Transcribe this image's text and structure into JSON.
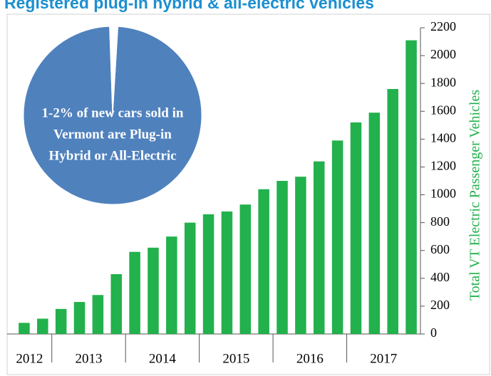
{
  "chart_data": [
    {
      "type": "bar",
      "title": "Registered plug-in hybrid & all-electric vehicles",
      "y_label": "Total VT Electric Passenger Vehicles",
      "categories": [
        "2012",
        "2012",
        "2013",
        "2013",
        "2013",
        "2013",
        "2014",
        "2014",
        "2014",
        "2014",
        "2015",
        "2015",
        "2015",
        "2015",
        "2016",
        "2016",
        "2016",
        "2016",
        "2017",
        "2017",
        "2017",
        "2017"
      ],
      "values": [
        80,
        110,
        180,
        230,
        280,
        430,
        590,
        620,
        700,
        800,
        860,
        880,
        930,
        1040,
        1100,
        1130,
        1240,
        1390,
        1520,
        1590,
        1760,
        2110
      ],
      "color": "#22b14c",
      "ylim": [
        0,
        2200
      ],
      "yticks": [
        0,
        200,
        400,
        600,
        800,
        1000,
        1200,
        1400,
        1600,
        1800,
        2000,
        2200
      ],
      "grid": false
    },
    {
      "type": "pie",
      "values": [
        98.5,
        1.5
      ],
      "colors": [
        "#4f81bd",
        "#ffffff"
      ],
      "annotation": [
        "1-2% of new cars sold in",
        "Vermont are Plug-in",
        "Hybrid  or All-Electric"
      ]
    }
  ]
}
